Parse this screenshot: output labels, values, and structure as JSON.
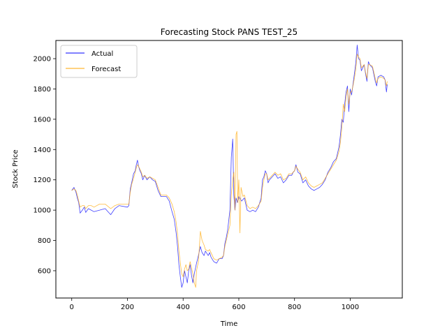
{
  "chart_data": {
    "type": "line",
    "title": "Forecasting Stock PANS TEST_25",
    "xlabel": "Time",
    "ylabel": "Stock Price",
    "xlim": [
      -57,
      1187
    ],
    "ylim": [
      420,
      2120
    ],
    "xticks": [
      0,
      200,
      400,
      600,
      800,
      1000
    ],
    "yticks": [
      600,
      800,
      1000,
      1200,
      1400,
      1600,
      1800,
      2000
    ],
    "grid": false,
    "legend_position": "top-left",
    "series": [
      {
        "name": "Actual",
        "color": "#0000ff",
        "points": [
          [
            0,
            1130
          ],
          [
            8,
            1150
          ],
          [
            15,
            1120
          ],
          [
            20,
            1080
          ],
          [
            25,
            1050
          ],
          [
            30,
            980
          ],
          [
            38,
            1000
          ],
          [
            45,
            1020
          ],
          [
            50,
            985
          ],
          [
            60,
            1010
          ],
          [
            70,
            1000
          ],
          [
            80,
            990
          ],
          [
            100,
            1000
          ],
          [
            120,
            1010
          ],
          [
            140,
            970
          ],
          [
            155,
            1010
          ],
          [
            170,
            1030
          ],
          [
            200,
            1020
          ],
          [
            205,
            1030
          ],
          [
            210,
            1140
          ],
          [
            215,
            1180
          ],
          [
            222,
            1240
          ],
          [
            228,
            1260
          ],
          [
            232,
            1300
          ],
          [
            236,
            1330
          ],
          [
            240,
            1290
          ],
          [
            245,
            1260
          ],
          [
            250,
            1240
          ],
          [
            255,
            1200
          ],
          [
            262,
            1230
          ],
          [
            270,
            1200
          ],
          [
            280,
            1220
          ],
          [
            290,
            1200
          ],
          [
            300,
            1190
          ],
          [
            310,
            1130
          ],
          [
            320,
            1090
          ],
          [
            340,
            1090
          ],
          [
            350,
            1060
          ],
          [
            360,
            990
          ],
          [
            368,
            940
          ],
          [
            375,
            850
          ],
          [
            380,
            760
          ],
          [
            385,
            640
          ],
          [
            390,
            560
          ],
          [
            395,
            490
          ],
          [
            400,
            520
          ],
          [
            405,
            600
          ],
          [
            410,
            560
          ],
          [
            415,
            520
          ],
          [
            420,
            600
          ],
          [
            425,
            640
          ],
          [
            430,
            570
          ],
          [
            435,
            520
          ],
          [
            440,
            580
          ],
          [
            448,
            650
          ],
          [
            455,
            700
          ],
          [
            462,
            760
          ],
          [
            468,
            720
          ],
          [
            475,
            700
          ],
          [
            480,
            730
          ],
          [
            490,
            700
          ],
          [
            495,
            720
          ],
          [
            500,
            690
          ],
          [
            510,
            660
          ],
          [
            520,
            650
          ],
          [
            530,
            680
          ],
          [
            540,
            680
          ],
          [
            545,
            700
          ],
          [
            550,
            780
          ],
          [
            555,
            820
          ],
          [
            560,
            870
          ],
          [
            568,
            1000
          ],
          [
            573,
            1350
          ],
          [
            578,
            1470
          ],
          [
            582,
            1100
          ],
          [
            586,
            1000
          ],
          [
            590,
            1080
          ],
          [
            595,
            1050
          ],
          [
            600,
            1090
          ],
          [
            610,
            1060
          ],
          [
            620,
            1080
          ],
          [
            630,
            1000
          ],
          [
            640,
            990
          ],
          [
            650,
            1000
          ],
          [
            660,
            990
          ],
          [
            670,
            1020
          ],
          [
            680,
            1080
          ],
          [
            685,
            1200
          ],
          [
            690,
            1220
          ],
          [
            695,
            1260
          ],
          [
            700,
            1240
          ],
          [
            705,
            1180
          ],
          [
            710,
            1200
          ],
          [
            720,
            1220
          ],
          [
            730,
            1240
          ],
          [
            740,
            1210
          ],
          [
            750,
            1220
          ],
          [
            760,
            1180
          ],
          [
            770,
            1200
          ],
          [
            780,
            1230
          ],
          [
            790,
            1230
          ],
          [
            795,
            1250
          ],
          [
            800,
            1260
          ],
          [
            805,
            1300
          ],
          [
            812,
            1250
          ],
          [
            820,
            1240
          ],
          [
            830,
            1180
          ],
          [
            840,
            1200
          ],
          [
            850,
            1160
          ],
          [
            860,
            1140
          ],
          [
            870,
            1130
          ],
          [
            880,
            1140
          ],
          [
            890,
            1150
          ],
          [
            900,
            1170
          ],
          [
            910,
            1200
          ],
          [
            920,
            1250
          ],
          [
            930,
            1280
          ],
          [
            940,
            1320
          ],
          [
            950,
            1340
          ],
          [
            960,
            1420
          ],
          [
            965,
            1500
          ],
          [
            970,
            1600
          ],
          [
            975,
            1580
          ],
          [
            980,
            1700
          ],
          [
            985,
            1780
          ],
          [
            990,
            1820
          ],
          [
            995,
            1650
          ],
          [
            1000,
            1800
          ],
          [
            1005,
            1760
          ],
          [
            1010,
            1830
          ],
          [
            1015,
            1900
          ],
          [
            1020,
            1970
          ],
          [
            1025,
            2090
          ],
          [
            1030,
            2000
          ],
          [
            1035,
            1990
          ],
          [
            1040,
            1920
          ],
          [
            1050,
            1960
          ],
          [
            1055,
            1900
          ],
          [
            1060,
            1850
          ],
          [
            1065,
            1980
          ],
          [
            1070,
            1960
          ],
          [
            1080,
            1940
          ],
          [
            1090,
            1850
          ],
          [
            1095,
            1820
          ],
          [
            1100,
            1880
          ],
          [
            1110,
            1890
          ],
          [
            1120,
            1880
          ],
          [
            1125,
            1860
          ],
          [
            1130,
            1780
          ],
          [
            1133,
            1830
          ]
        ]
      },
      {
        "name": "Forecast",
        "color": "#ffa500",
        "points": [
          [
            0,
            1130
          ],
          [
            8,
            1140
          ],
          [
            15,
            1130
          ],
          [
            20,
            1100
          ],
          [
            25,
            1060
          ],
          [
            30,
            1020
          ],
          [
            38,
            1030
          ],
          [
            45,
            1030
          ],
          [
            50,
            1010
          ],
          [
            60,
            1030
          ],
          [
            70,
            1030
          ],
          [
            80,
            1020
          ],
          [
            100,
            1040
          ],
          [
            120,
            1040
          ],
          [
            140,
            1010
          ],
          [
            155,
            1030
          ],
          [
            170,
            1040
          ],
          [
            200,
            1040
          ],
          [
            205,
            1040
          ],
          [
            210,
            1120
          ],
          [
            215,
            1170
          ],
          [
            222,
            1210
          ],
          [
            228,
            1250
          ],
          [
            232,
            1280
          ],
          [
            236,
            1300
          ],
          [
            240,
            1290
          ],
          [
            245,
            1270
          ],
          [
            250,
            1250
          ],
          [
            255,
            1220
          ],
          [
            262,
            1230
          ],
          [
            270,
            1210
          ],
          [
            280,
            1220
          ],
          [
            290,
            1210
          ],
          [
            300,
            1200
          ],
          [
            310,
            1150
          ],
          [
            320,
            1100
          ],
          [
            340,
            1100
          ],
          [
            350,
            1080
          ],
          [
            360,
            1040
          ],
          [
            368,
            990
          ],
          [
            375,
            920
          ],
          [
            380,
            840
          ],
          [
            385,
            730
          ],
          [
            390,
            650
          ],
          [
            395,
            580
          ],
          [
            400,
            560
          ],
          [
            405,
            610
          ],
          [
            410,
            640
          ],
          [
            415,
            600
          ],
          [
            420,
            610
          ],
          [
            425,
            660
          ],
          [
            430,
            620
          ],
          [
            435,
            580
          ],
          [
            440,
            520
          ],
          [
            445,
            490
          ],
          [
            448,
            600
          ],
          [
            455,
            660
          ],
          [
            462,
            860
          ],
          [
            468,
            800
          ],
          [
            475,
            770
          ],
          [
            480,
            740
          ],
          [
            490,
            730
          ],
          [
            495,
            740
          ],
          [
            500,
            720
          ],
          [
            510,
            680
          ],
          [
            520,
            670
          ],
          [
            530,
            680
          ],
          [
            540,
            690
          ],
          [
            545,
            700
          ],
          [
            550,
            760
          ],
          [
            555,
            800
          ],
          [
            560,
            840
          ],
          [
            568,
            900
          ],
          [
            573,
            1100
          ],
          [
            578,
            1200
          ],
          [
            582,
            1250
          ],
          [
            586,
            1000
          ],
          [
            590,
            1500
          ],
          [
            593,
            1520
          ],
          [
            596,
            1050
          ],
          [
            600,
            1200
          ],
          [
            604,
            850
          ],
          [
            608,
            1150
          ],
          [
            615,
            1090
          ],
          [
            620,
            1100
          ],
          [
            630,
            1030
          ],
          [
            640,
            1010
          ],
          [
            650,
            1020
          ],
          [
            660,
            1010
          ],
          [
            670,
            1030
          ],
          [
            680,
            1060
          ],
          [
            685,
            1150
          ],
          [
            690,
            1200
          ],
          [
            695,
            1240
          ],
          [
            700,
            1240
          ],
          [
            705,
            1200
          ],
          [
            710,
            1210
          ],
          [
            720,
            1230
          ],
          [
            730,
            1250
          ],
          [
            740,
            1230
          ],
          [
            750,
            1240
          ],
          [
            760,
            1200
          ],
          [
            770,
            1210
          ],
          [
            780,
            1240
          ],
          [
            790,
            1240
          ],
          [
            795,
            1250
          ],
          [
            800,
            1260
          ],
          [
            805,
            1290
          ],
          [
            812,
            1270
          ],
          [
            820,
            1250
          ],
          [
            830,
            1200
          ],
          [
            840,
            1220
          ],
          [
            850,
            1180
          ],
          [
            860,
            1160
          ],
          [
            870,
            1150
          ],
          [
            880,
            1160
          ],
          [
            890,
            1170
          ],
          [
            900,
            1180
          ],
          [
            910,
            1210
          ],
          [
            920,
            1240
          ],
          [
            930,
            1270
          ],
          [
            940,
            1300
          ],
          [
            950,
            1330
          ],
          [
            960,
            1390
          ],
          [
            965,
            1450
          ],
          [
            970,
            1550
          ],
          [
            975,
            1700
          ],
          [
            980,
            1650
          ],
          [
            985,
            1750
          ],
          [
            990,
            1800
          ],
          [
            995,
            1700
          ],
          [
            1000,
            1780
          ],
          [
            1005,
            1780
          ],
          [
            1010,
            1820
          ],
          [
            1015,
            1870
          ],
          [
            1020,
            1930
          ],
          [
            1025,
            2030
          ],
          [
            1030,
            2010
          ],
          [
            1035,
            2000
          ],
          [
            1040,
            1940
          ],
          [
            1050,
            1960
          ],
          [
            1055,
            1910
          ],
          [
            1060,
            1870
          ],
          [
            1065,
            1960
          ],
          [
            1070,
            1960
          ],
          [
            1080,
            1950
          ],
          [
            1090,
            1870
          ],
          [
            1095,
            1840
          ],
          [
            1100,
            1870
          ],
          [
            1110,
            1880
          ],
          [
            1120,
            1870
          ],
          [
            1125,
            1860
          ],
          [
            1130,
            1820
          ],
          [
            1133,
            1850
          ]
        ]
      }
    ]
  }
}
